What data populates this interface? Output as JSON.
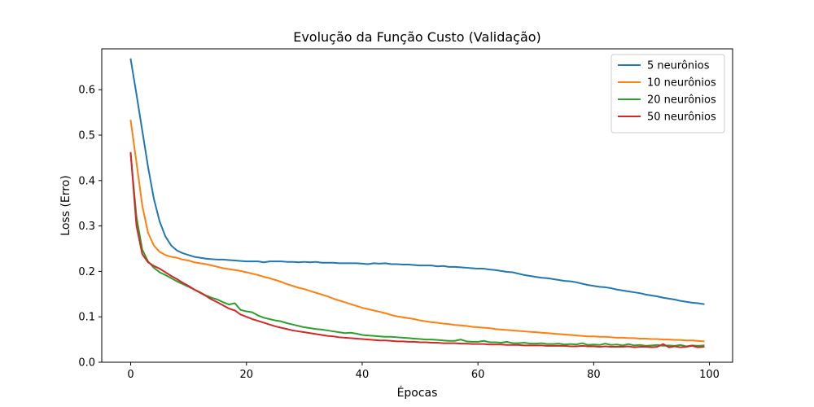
{
  "chart_data": {
    "type": "line",
    "title": "Evolução da Função Custo (Validação)",
    "xlabel": "Épocas",
    "ylabel": "Loss (Erro)",
    "xlim": [
      -5,
      104
    ],
    "ylim": [
      0,
      0.69
    ],
    "xticks": [
      0,
      20,
      40,
      60,
      80,
      100
    ],
    "xtick_labels": [
      "0",
      "20",
      "40",
      "60",
      "80",
      "100"
    ],
    "yticks": [
      0.0,
      0.1,
      0.2,
      0.3,
      0.4,
      0.5,
      0.6
    ],
    "ytick_labels": [
      "0.0",
      "0.1",
      "0.2",
      "0.3",
      "0.4",
      "0.5",
      "0.6"
    ],
    "grid": false,
    "legend_position": "top-right",
    "x_start": 0,
    "x_step": 1,
    "series": [
      {
        "name": "5 neurônios",
        "color": "#1f77b4",
        "values": [
          0.667,
          0.59,
          0.51,
          0.43,
          0.36,
          0.31,
          0.277,
          0.257,
          0.246,
          0.24,
          0.236,
          0.232,
          0.23,
          0.228,
          0.227,
          0.226,
          0.226,
          0.225,
          0.224,
          0.223,
          0.222,
          0.222,
          0.222,
          0.22,
          0.222,
          0.222,
          0.222,
          0.221,
          0.221,
          0.22,
          0.221,
          0.22,
          0.221,
          0.219,
          0.219,
          0.219,
          0.218,
          0.218,
          0.218,
          0.218,
          0.217,
          0.216,
          0.218,
          0.217,
          0.218,
          0.216,
          0.216,
          0.215,
          0.215,
          0.214,
          0.213,
          0.213,
          0.213,
          0.211,
          0.212,
          0.21,
          0.21,
          0.209,
          0.208,
          0.207,
          0.206,
          0.206,
          0.204,
          0.203,
          0.201,
          0.199,
          0.198,
          0.195,
          0.192,
          0.19,
          0.188,
          0.186,
          0.185,
          0.183,
          0.181,
          0.179,
          0.178,
          0.176,
          0.173,
          0.17,
          0.168,
          0.166,
          0.165,
          0.163,
          0.16,
          0.158,
          0.156,
          0.154,
          0.152,
          0.149,
          0.147,
          0.145,
          0.142,
          0.14,
          0.138,
          0.135,
          0.133,
          0.131,
          0.13,
          0.128
        ]
      },
      {
        "name": "10 neurônios",
        "color": "#ff7f0e",
        "values": [
          0.532,
          0.44,
          0.345,
          0.285,
          0.257,
          0.243,
          0.236,
          0.232,
          0.23,
          0.226,
          0.224,
          0.22,
          0.218,
          0.216,
          0.213,
          0.21,
          0.207,
          0.205,
          0.203,
          0.201,
          0.198,
          0.195,
          0.192,
          0.188,
          0.185,
          0.181,
          0.177,
          0.172,
          0.168,
          0.164,
          0.161,
          0.157,
          0.153,
          0.149,
          0.145,
          0.14,
          0.136,
          0.132,
          0.128,
          0.124,
          0.12,
          0.117,
          0.114,
          0.111,
          0.108,
          0.104,
          0.101,
          0.099,
          0.097,
          0.095,
          0.092,
          0.09,
          0.088,
          0.087,
          0.085,
          0.084,
          0.082,
          0.081,
          0.08,
          0.078,
          0.077,
          0.076,
          0.075,
          0.073,
          0.072,
          0.071,
          0.07,
          0.069,
          0.068,
          0.067,
          0.066,
          0.065,
          0.064,
          0.063,
          0.062,
          0.061,
          0.06,
          0.059,
          0.058,
          0.057,
          0.057,
          0.056,
          0.056,
          0.055,
          0.054,
          0.054,
          0.053,
          0.053,
          0.052,
          0.052,
          0.051,
          0.051,
          0.05,
          0.05,
          0.049,
          0.049,
          0.048,
          0.048,
          0.047,
          0.046
        ]
      },
      {
        "name": "20 neurônios",
        "color": "#2ca02c",
        "values": [
          0.457,
          0.32,
          0.248,
          0.222,
          0.208,
          0.198,
          0.192,
          0.185,
          0.178,
          0.172,
          0.166,
          0.16,
          0.154,
          0.147,
          0.142,
          0.138,
          0.132,
          0.127,
          0.13,
          0.115,
          0.112,
          0.11,
          0.103,
          0.098,
          0.095,
          0.092,
          0.09,
          0.086,
          0.083,
          0.08,
          0.077,
          0.075,
          0.073,
          0.072,
          0.07,
          0.068,
          0.066,
          0.064,
          0.065,
          0.063,
          0.06,
          0.059,
          0.058,
          0.057,
          0.056,
          0.056,
          0.055,
          0.054,
          0.053,
          0.052,
          0.051,
          0.05,
          0.05,
          0.049,
          0.048,
          0.047,
          0.047,
          0.05,
          0.046,
          0.045,
          0.045,
          0.047,
          0.044,
          0.044,
          0.043,
          0.045,
          0.042,
          0.042,
          0.043,
          0.041,
          0.041,
          0.042,
          0.04,
          0.04,
          0.041,
          0.039,
          0.04,
          0.039,
          0.042,
          0.038,
          0.039,
          0.038,
          0.041,
          0.038,
          0.039,
          0.037,
          0.04,
          0.037,
          0.038,
          0.036,
          0.037,
          0.038,
          0.036,
          0.037,
          0.036,
          0.038,
          0.035,
          0.037,
          0.036,
          0.037
        ]
      },
      {
        "name": "50 neurônios",
        "color": "#d62728",
        "values": [
          0.461,
          0.3,
          0.238,
          0.22,
          0.212,
          0.206,
          0.198,
          0.19,
          0.183,
          0.175,
          0.168,
          0.16,
          0.153,
          0.146,
          0.138,
          0.132,
          0.125,
          0.118,
          0.114,
          0.105,
          0.1,
          0.095,
          0.091,
          0.087,
          0.083,
          0.079,
          0.076,
          0.073,
          0.07,
          0.068,
          0.066,
          0.064,
          0.062,
          0.06,
          0.058,
          0.057,
          0.055,
          0.054,
          0.053,
          0.052,
          0.051,
          0.05,
          0.049,
          0.048,
          0.048,
          0.047,
          0.046,
          0.046,
          0.045,
          0.045,
          0.044,
          0.044,
          0.043,
          0.043,
          0.042,
          0.042,
          0.042,
          0.041,
          0.041,
          0.04,
          0.04,
          0.04,
          0.039,
          0.039,
          0.039,
          0.038,
          0.038,
          0.038,
          0.037,
          0.037,
          0.037,
          0.037,
          0.036,
          0.036,
          0.036,
          0.036,
          0.035,
          0.035,
          0.036,
          0.035,
          0.035,
          0.034,
          0.035,
          0.034,
          0.034,
          0.034,
          0.035,
          0.033,
          0.034,
          0.034,
          0.033,
          0.034,
          0.04,
          0.033,
          0.035,
          0.033,
          0.034,
          0.036,
          0.033,
          0.034
        ]
      }
    ]
  }
}
